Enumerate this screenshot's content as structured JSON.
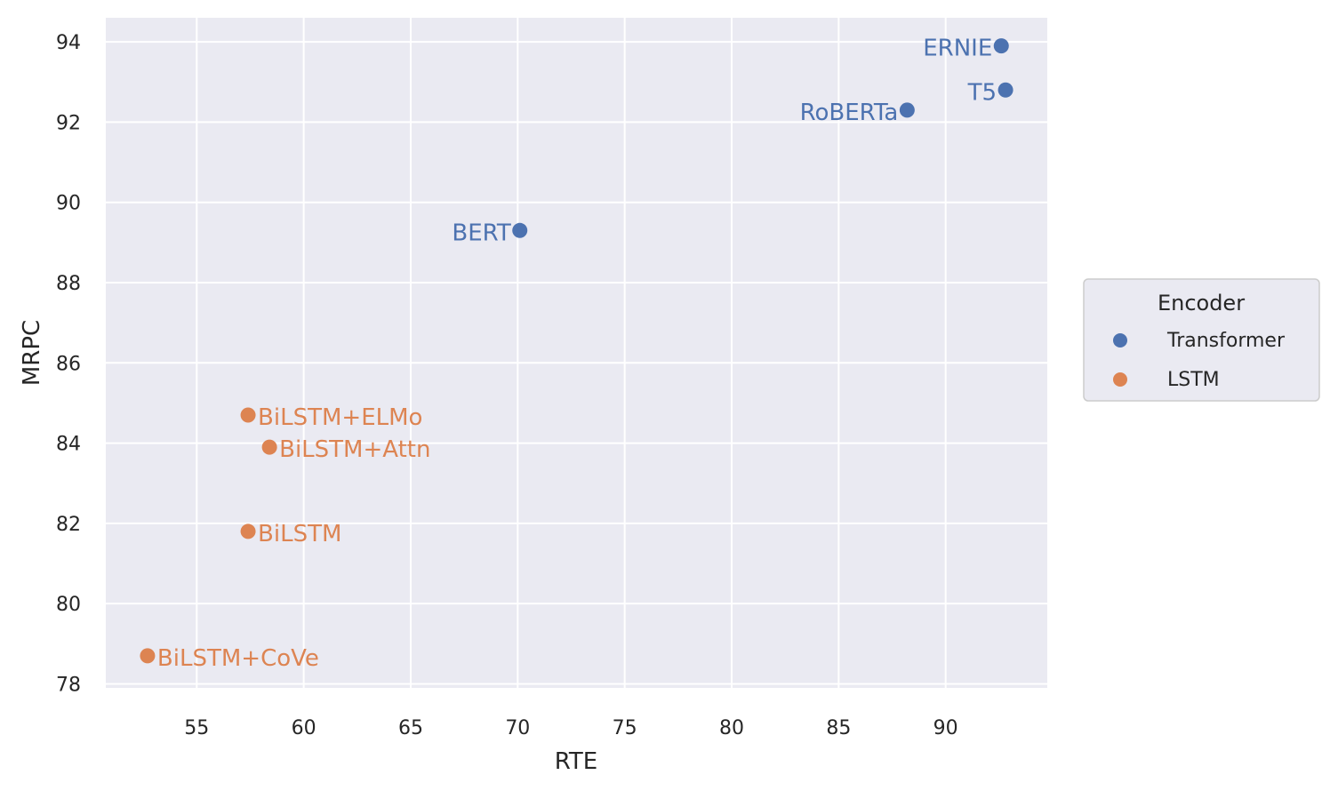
{
  "chart_data": {
    "type": "scatter",
    "xlabel": "RTE",
    "ylabel": "MRPC",
    "xlim": [
      50.75,
      94.75
    ],
    "ylim": [
      77.9,
      94.6
    ],
    "xticks": [
      55,
      60,
      65,
      70,
      75,
      80,
      85,
      90
    ],
    "yticks": [
      78,
      80,
      82,
      84,
      86,
      88,
      90,
      92,
      94
    ],
    "grid": true,
    "legend": {
      "title": "Encoder",
      "placement": "center-right outside"
    },
    "series": [
      {
        "name": "Transformer",
        "color": "#4c72b0",
        "points": [
          {
            "label": "ERNIE",
            "x": 92.6,
            "y": 93.9
          },
          {
            "label": "T5",
            "x": 92.8,
            "y": 92.8
          },
          {
            "label": "RoBERTa",
            "x": 88.2,
            "y": 92.3
          },
          {
            "label": "BERT",
            "x": 70.1,
            "y": 89.3
          }
        ]
      },
      {
        "name": "LSTM",
        "color": "#dd8452",
        "points": [
          {
            "label": "BiLSTM+ELMo",
            "x": 57.4,
            "y": 84.7
          },
          {
            "label": "BiLSTM+Attn",
            "x": 58.4,
            "y": 83.9
          },
          {
            "label": "BiLSTM",
            "x": 57.4,
            "y": 81.8
          },
          {
            "label": "BiLSTM+CoVe",
            "x": 52.7,
            "y": 78.7
          }
        ]
      }
    ]
  }
}
